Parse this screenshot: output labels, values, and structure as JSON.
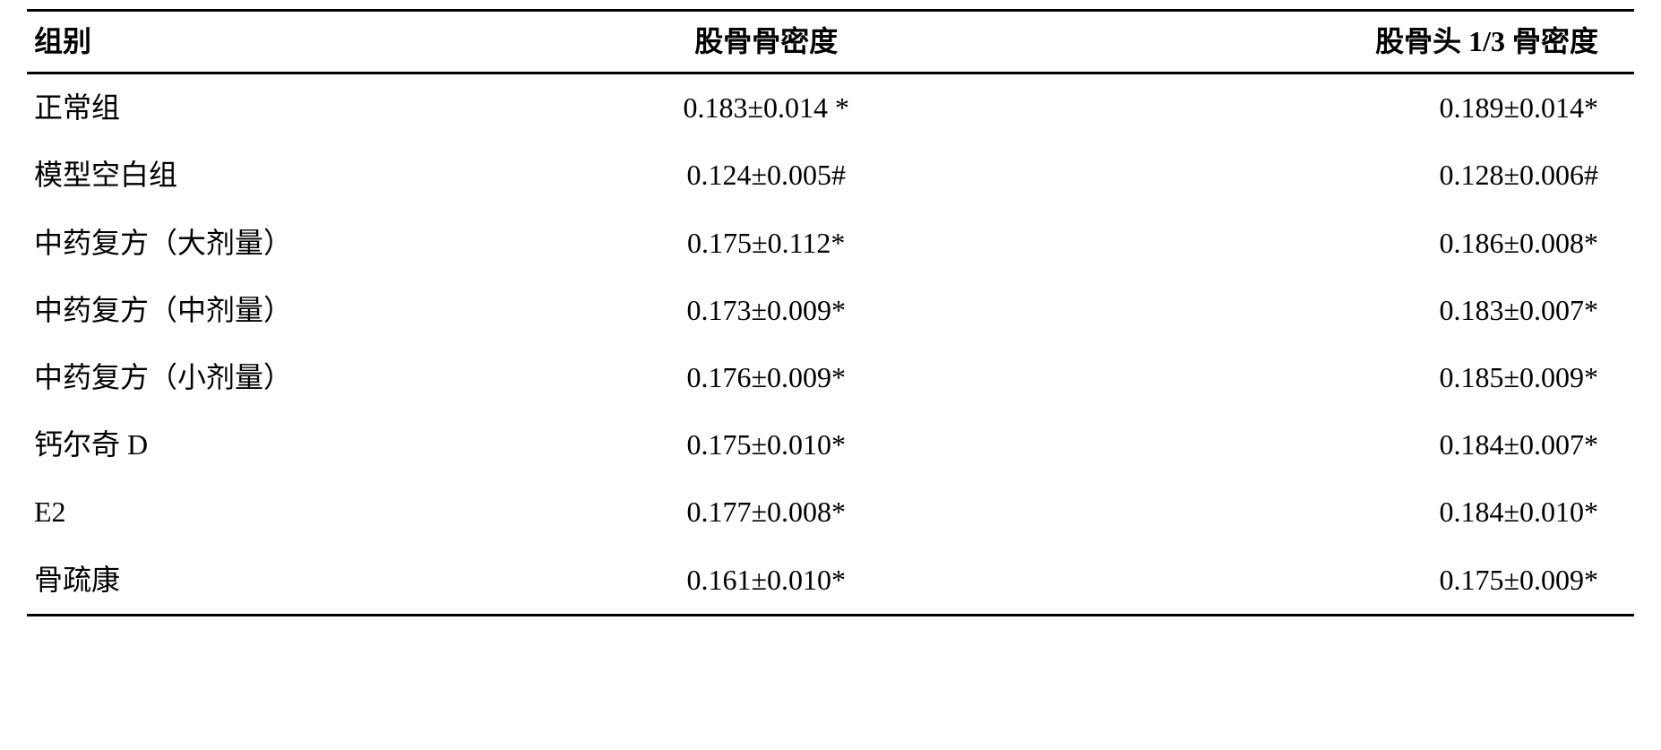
{
  "table": {
    "columns": [
      "组别",
      "股骨骨密度",
      "股骨头 1/3 骨密度"
    ],
    "rows": [
      [
        "正常组",
        "0.183±0.014 *",
        "0.189±0.014*"
      ],
      [
        "模型空白组",
        "0.124±0.005#",
        "0.128±0.006#"
      ],
      [
        "中药复方（大剂量）",
        "0.175±0.112*",
        "0.186±0.008*"
      ],
      [
        "中药复方（中剂量）",
        "0.173±0.009*",
        "0.183±0.007*"
      ],
      [
        "中药复方（小剂量）",
        "0.176±0.009*",
        "0.185±0.009*"
      ],
      [
        "钙尔奇 D",
        "0.175±0.010*",
        "0.184±0.007*"
      ],
      [
        "E2",
        "0.177±0.008*",
        "0.184±0.010*"
      ],
      [
        "骨疏康",
        "0.161±0.010*",
        "0.175±0.009*"
      ]
    ],
    "column_alignment": [
      "left",
      "center",
      "right"
    ],
    "border_color": "#000000",
    "border_width": 3,
    "background_color": "#ffffff",
    "text_color": "#000000",
    "header_font_weight": "bold",
    "body_font_weight": "normal",
    "font_size": 32,
    "font_family": "SimSun"
  }
}
